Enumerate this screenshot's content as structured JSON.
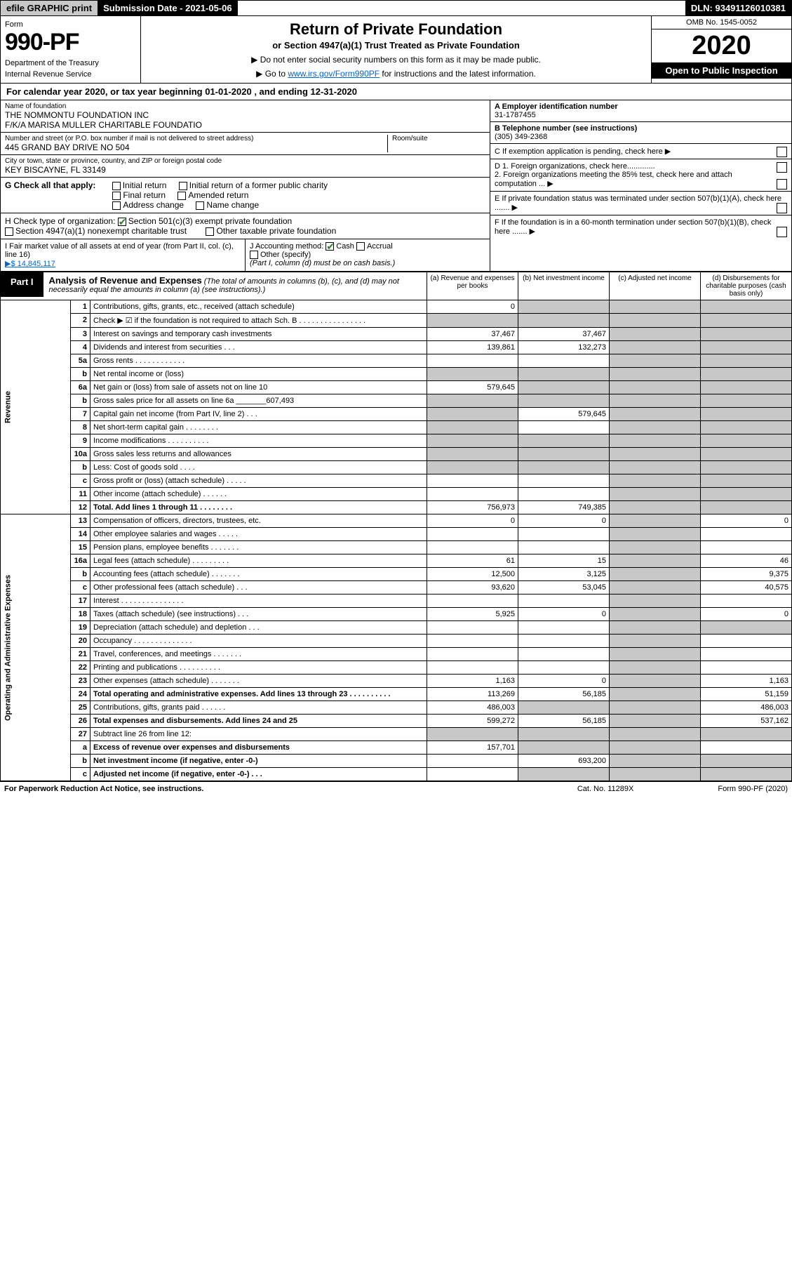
{
  "topbar": {
    "efile": "efile GRAPHIC print",
    "submission": "Submission Date - 2021-05-06",
    "dln": "DLN: 93491126010381"
  },
  "header": {
    "form_label": "Form",
    "form_no": "990-PF",
    "dept1": "Department of the Treasury",
    "dept2": "Internal Revenue Service",
    "title": "Return of Private Foundation",
    "subtitle": "or Section 4947(a)(1) Trust Treated as Private Foundation",
    "instr1": "▶ Do not enter social security numbers on this form as it may be made public.",
    "instr2_prefix": "▶ Go to ",
    "instr2_link": "www.irs.gov/Form990PF",
    "instr2_suffix": " for instructions and the latest information.",
    "omb": "OMB No. 1545-0052",
    "year": "2020",
    "open": "Open to Public Inspection"
  },
  "calendar": "For calendar year 2020, or tax year beginning 01-01-2020                         , and ending 12-31-2020",
  "entity": {
    "name_label": "Name of foundation",
    "name1": "THE NOMMONTU FOUNDATION INC",
    "name2": "F/K/A MARISA MULLER CHARITABLE FOUNDATIO",
    "addr_label": "Number and street (or P.O. box number if mail is not delivered to street address)",
    "addr": "445 GRAND BAY DRIVE NO 504",
    "room_label": "Room/suite",
    "city_label": "City or town, state or province, country, and ZIP or foreign postal code",
    "city": "KEY BISCAYNE, FL  33149",
    "ein_label": "A Employer identification number",
    "ein": "31-1787455",
    "phone_label": "B Telephone number (see instructions)",
    "phone": "(305) 349-2368",
    "c_label": "C If exemption application is pending, check here",
    "d1": "D 1. Foreign organizations, check here.............",
    "d2": "2. Foreign organizations meeting the 85% test, check here and attach computation ...",
    "e": "E  If private foundation status was terminated under section 507(b)(1)(A), check here .......",
    "f": "F  If the foundation is in a 60-month termination under section 507(b)(1)(B), check here ......."
  },
  "g": {
    "label": "G Check all that apply:",
    "opts": [
      "Initial return",
      "Final return",
      "Address change",
      "Initial return of a former public charity",
      "Amended return",
      "Name change"
    ]
  },
  "h": {
    "label": "H Check type of organization:",
    "opt1": "Section 501(c)(3) exempt private foundation",
    "opt2": "Section 4947(a)(1) nonexempt charitable trust",
    "opt3": "Other taxable private foundation"
  },
  "i": {
    "label": "I Fair market value of all assets at end of year (from Part II, col. (c), line 16)",
    "val": "▶$  14,845,117"
  },
  "j": {
    "label": "J Accounting method:",
    "cash": "Cash",
    "accrual": "Accrual",
    "other": "Other (specify)",
    "note": "(Part I, column (d) must be on cash basis.)"
  },
  "part1": {
    "label": "Part I",
    "title": "Analysis of Revenue and Expenses",
    "title_note": " (The total of amounts in columns (b), (c), and (d) may not necessarily equal the amounts in column (a) (see instructions).)",
    "col_a": "(a)    Revenue and expenses per books",
    "col_b": "(b)   Net investment income",
    "col_c": "(c)   Adjusted net income",
    "col_d": "(d)   Disbursements for charitable purposes (cash basis only)"
  },
  "sections": {
    "revenue": "Revenue",
    "opex": "Operating and Administrative Expenses"
  },
  "rows": [
    {
      "n": "1",
      "d": "Contributions, gifts, grants, etc., received (attach schedule)",
      "a": "0"
    },
    {
      "n": "2",
      "d": "Check ▶ ☑ if the foundation is not required to attach Sch. B       .   .   .   .   .   .   .   .   .   .   .   .   .   .   .   ."
    },
    {
      "n": "3",
      "d": "Interest on savings and temporary cash investments",
      "a": "37,467",
      "b": "37,467"
    },
    {
      "n": "4",
      "d": "Dividends and interest from securities     .   .   .",
      "a": "139,861",
      "b": "132,273"
    },
    {
      "n": "5a",
      "d": "Gross rents       .   .   .   .   .   .   .   .   .   .   .   ."
    },
    {
      "n": "b",
      "d": "Net rental income or (loss)"
    },
    {
      "n": "6a",
      "d": "Net gain or (loss) from sale of assets not on line 10",
      "a": "579,645"
    },
    {
      "n": "b",
      "d": "Gross sales price for all assets on line 6a _______607,493"
    },
    {
      "n": "7",
      "d": "Capital gain net income (from Part IV, line 2)    .   .   .",
      "b": "579,645"
    },
    {
      "n": "8",
      "d": "Net short-term capital gain   .   .   .   .   .   .   .   ."
    },
    {
      "n": "9",
      "d": "Income modifications  .   .   .   .   .   .   .   .   .   ."
    },
    {
      "n": "10a",
      "d": "Gross sales less returns and allowances"
    },
    {
      "n": "b",
      "d": "Less: Cost of goods sold     .   .   .   ."
    },
    {
      "n": "c",
      "d": "Gross profit or (loss) (attach schedule)       .   .   .   .   ."
    },
    {
      "n": "11",
      "d": "Other income (attach schedule)     .   .   .   .   .   ."
    },
    {
      "n": "12",
      "d": "Total. Add lines 1 through 11    .   .   .   .   .   .   .   .",
      "a": "756,973",
      "b": "749,385",
      "bold": true
    },
    {
      "n": "13",
      "d": "Compensation of officers, directors, trustees, etc.",
      "a": "0",
      "b": "0",
      "dd": "0"
    },
    {
      "n": "14",
      "d": "Other employee salaries and wages     .   .   .   .   ."
    },
    {
      "n": "15",
      "d": "Pension plans, employee benefits  .   .   .   .   .   .   ."
    },
    {
      "n": "16a",
      "d": "Legal fees (attach schedule)  .   .   .   .   .   .   .   .   .",
      "a": "61",
      "b": "15",
      "dd": "46"
    },
    {
      "n": "b",
      "d": "Accounting fees (attach schedule)  .   .   .   .   .   .   .",
      "a": "12,500",
      "b": "3,125",
      "dd": "9,375"
    },
    {
      "n": "c",
      "d": "Other professional fees (attach schedule)     .   .   .",
      "a": "93,620",
      "b": "53,045",
      "dd": "40,575"
    },
    {
      "n": "17",
      "d": "Interest  .   .   .   .   .   .   .   .   .   .   .   .   .   .   ."
    },
    {
      "n": "18",
      "d": "Taxes (attach schedule) (see instructions)      .   .   .",
      "a": "5,925",
      "b": "0",
      "dd": "0"
    },
    {
      "n": "19",
      "d": "Depreciation (attach schedule) and depletion    .   .   ."
    },
    {
      "n": "20",
      "d": "Occupancy  .   .   .   .   .   .   .   .   .   .   .   .   .   ."
    },
    {
      "n": "21",
      "d": "Travel, conferences, and meetings  .   .   .   .   .   .   ."
    },
    {
      "n": "22",
      "d": "Printing and publications  .   .   .   .   .   .   .   .   .   ."
    },
    {
      "n": "23",
      "d": "Other expenses (attach schedule)  .   .   .   .   .   .   .",
      "a": "1,163",
      "b": "0",
      "dd": "1,163"
    },
    {
      "n": "24",
      "d": "Total operating and administrative expenses. Add lines 13 through 23    .   .   .   .   .   .   .   .   .   .",
      "a": "113,269",
      "b": "56,185",
      "dd": "51,159",
      "bold": true
    },
    {
      "n": "25",
      "d": "Contributions, gifts, grants paid      .   .   .   .   .   .",
      "a": "486,003",
      "dd": "486,003"
    },
    {
      "n": "26",
      "d": "Total expenses and disbursements. Add lines 24 and 25",
      "a": "599,272",
      "b": "56,185",
      "dd": "537,162",
      "bold": true
    },
    {
      "n": "27",
      "d": "Subtract line 26 from line 12:"
    },
    {
      "n": "a",
      "d": "Excess of revenue over expenses and disbursements",
      "a": "157,701",
      "bold": true
    },
    {
      "n": "b",
      "d": "Net investment income (if negative, enter -0-)",
      "b": "693,200",
      "bold": true
    },
    {
      "n": "c",
      "d": "Adjusted net income (if negative, enter -0-)    .   .   .",
      "bold": true
    }
  ],
  "grey_cells": {
    "col_a": [
      "2",
      "b_5",
      "b_6",
      "7",
      "8",
      "9",
      "10a",
      "b_10",
      "27"
    ],
    "col_b": [
      "1",
      "2",
      "b_5",
      "6a",
      "b_6",
      "8",
      "9",
      "10a",
      "b_10",
      "25",
      "27",
      "a_27",
      "c_27"
    ],
    "col_c_all": true,
    "col_d": [
      "1",
      "2",
      "3",
      "4",
      "5a",
      "b_5",
      "6a",
      "b_6",
      "7",
      "8",
      "9",
      "10a",
      "b_10",
      "c_10",
      "11",
      "12",
      "19",
      "27",
      "b_27",
      "c_27"
    ]
  },
  "footer": {
    "left": "For Paperwork Reduction Act Notice, see instructions.",
    "mid": "Cat. No. 11289X",
    "right": "Form 990-PF (2020)"
  }
}
